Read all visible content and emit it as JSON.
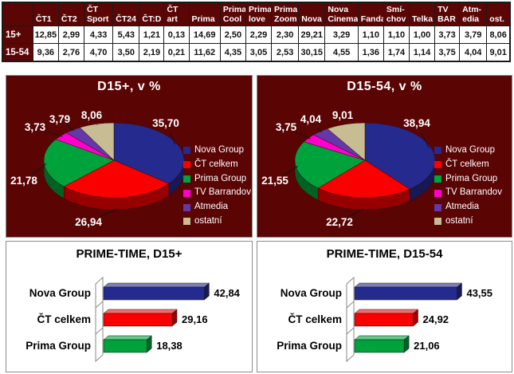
{
  "table": {
    "corner": "",
    "columns": [
      "ČT1",
      "ČT2",
      "ČT Sport",
      "ČT24",
      "ČT:D",
      "ČT art",
      "Prima",
      "Prima Cool",
      "Prima love",
      "Prima Zoom",
      "Nova",
      "Nova Cinema",
      "Fanda",
      "Smí-chov",
      "Telka",
      "TV BAR",
      "Atm-edia",
      "ost."
    ],
    "rows": [
      {
        "label": "15+",
        "values": [
          "12,85",
          "2,99",
          "4,33",
          "5,43",
          "1,21",
          "0,13",
          "14,69",
          "2,50",
          "2,29",
          "2,30",
          "29,21",
          "3,29",
          "1,10",
          "1,10",
          "1,00",
          "3,73",
          "3,79",
          "8,06"
        ]
      },
      {
        "label": "15-54",
        "values": [
          "9,36",
          "2,76",
          "4,70",
          "3,50",
          "2,19",
          "0,21",
          "11,62",
          "4,35",
          "3,05",
          "2,53",
          "30,15",
          "4,55",
          "1,36",
          "1,74",
          "1,14",
          "3,75",
          "4,04",
          "9,01"
        ]
      }
    ]
  },
  "legend": {
    "items": [
      {
        "label": "Nova Group",
        "color": "#252a8e"
      },
      {
        "label": "ČT celkem",
        "color": "#fa0000"
      },
      {
        "label": "Prima Group",
        "color": "#00a23c"
      },
      {
        "label": "TV Barrandov",
        "color": "#ff00cc"
      },
      {
        "label": "Atmedia",
        "color": "#6438a8"
      },
      {
        "label": "ostatní",
        "color": "#c8bc92"
      }
    ]
  },
  "colors": {
    "panel_background_maroon": "#5a0404",
    "panel_border": "#8c8c8c",
    "table_header_maroon": "#5b0505",
    "pie_label_text": "#ffffff",
    "bar_label_text": "#000000"
  },
  "chart_data": [
    {
      "type": "pie",
      "title": "D15+, v %",
      "background": "#5a0404",
      "legend_position": "right",
      "labels": [
        "Nova Group",
        "ČT celkem",
        "Prima Group",
        "TV Barrandov",
        "Atmedia",
        "ostatní"
      ],
      "values": [
        35.7,
        26.94,
        21.78,
        3.73,
        3.79,
        8.06
      ],
      "display_values": [
        "35,70",
        "26,94",
        "21,78",
        "3,73",
        "3,79",
        "8,06"
      ]
    },
    {
      "type": "pie",
      "title": "D15-54, v %",
      "background": "#5a0404",
      "legend_position": "right",
      "labels": [
        "Nova Group",
        "ČT celkem",
        "Prima Group",
        "TV Barrandov",
        "Atmedia",
        "ostatní"
      ],
      "values": [
        38.94,
        22.72,
        21.55,
        3.75,
        4.04,
        9.01
      ],
      "display_values": [
        "38,94",
        "22,72",
        "21,55",
        "3,75",
        "4,04",
        "9,01"
      ]
    },
    {
      "type": "bar",
      "title": "PRIME-TIME, D15+",
      "orientation": "horizontal",
      "categories": [
        "Nova Group",
        "ČT celkem",
        "Prima Group"
      ],
      "values": [
        42.84,
        29.16,
        18.38
      ],
      "display_values": [
        "42,84",
        "29,16",
        "18,38"
      ],
      "xlim": [
        0,
        50
      ],
      "grid": false,
      "legend_position": "none"
    },
    {
      "type": "bar",
      "title": "PRIME-TIME, D15-54",
      "orientation": "horizontal",
      "categories": [
        "Nova Group",
        "ČT celkem",
        "Prima Group"
      ],
      "values": [
        43.55,
        24.92,
        21.06
      ],
      "display_values": [
        "43,55",
        "24,92",
        "21,06"
      ],
      "xlim": [
        0,
        50
      ],
      "grid": false,
      "legend_position": "none"
    }
  ]
}
